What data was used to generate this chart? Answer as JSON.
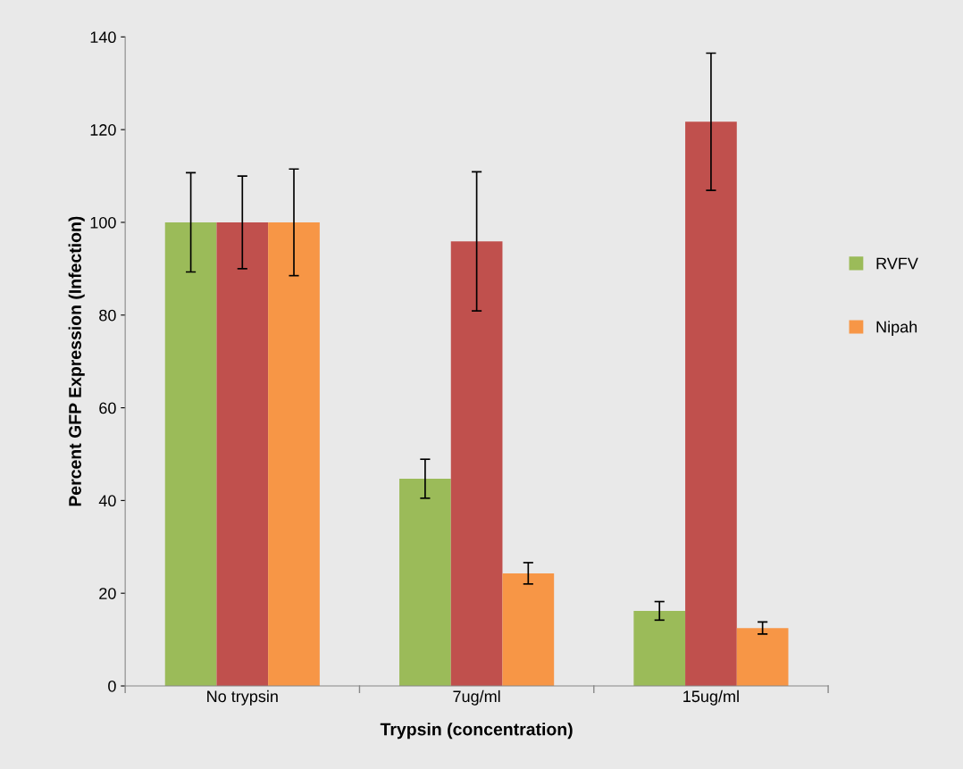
{
  "chart_data": {
    "type": "bar",
    "xlabel": "Trypsin (concentration)",
    "ylabel": "Percent GFP Expression (Infection)",
    "categories": [
      "No trypsin",
      "7ug/ml",
      "15ug/ml"
    ],
    "series": [
      {
        "name": "RVFV",
        "color": "#9bbb59",
        "values": [
          100,
          44.7,
          16.2
        ],
        "errors": [
          10.7,
          4.2,
          2.0
        ]
      },
      {
        "color": "#c0504d",
        "values": [
          100,
          95.9,
          121.7
        ],
        "errors": [
          10,
          15,
          14.8
        ]
      },
      {
        "name": "Nipah",
        "color": "#f79646",
        "values": [
          100,
          24.3,
          12.5
        ],
        "errors": [
          11.5,
          2.3,
          1.3
        ]
      }
    ],
    "ylim": [
      0,
      140
    ],
    "yticks": [
      0,
      20,
      40,
      60,
      80,
      100,
      120,
      140
    ],
    "grid": false,
    "legend": "right"
  }
}
